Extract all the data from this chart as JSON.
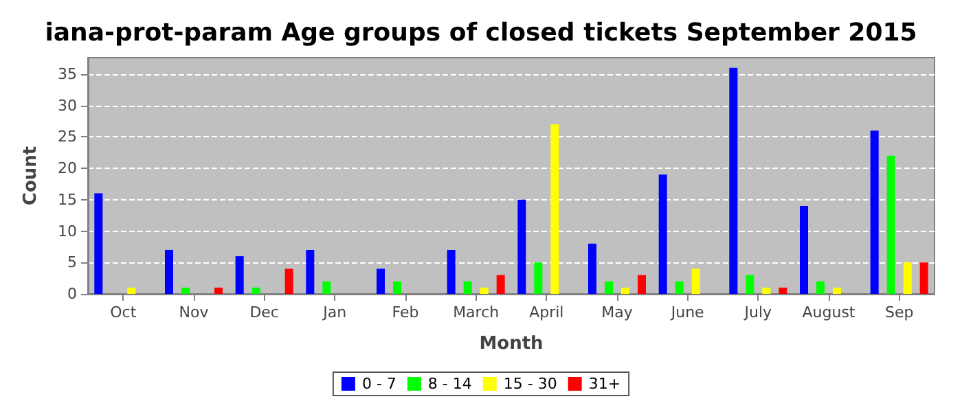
{
  "chart_data": {
    "type": "bar",
    "title": "iana-prot-param Age groups of closed tickets September 2015",
    "xlabel": "Month",
    "ylabel": "Count",
    "categories": [
      "Oct",
      "Nov",
      "Dec",
      "Jan",
      "Feb",
      "March",
      "April",
      "May",
      "June",
      "July",
      "August",
      "Sep"
    ],
    "series": [
      {
        "name": "0 - 7",
        "color": "#0000ff",
        "values": [
          16,
          7,
          6,
          7,
          4,
          7,
          15,
          8,
          19,
          36,
          14,
          26
        ]
      },
      {
        "name": "8 - 14",
        "color": "#00ff00",
        "values": [
          0,
          1,
          1,
          2,
          2,
          2,
          5,
          2,
          2,
          3,
          2,
          22
        ]
      },
      {
        "name": "15 - 30",
        "color": "#ffff00",
        "values": [
          1,
          0,
          0,
          0,
          0,
          1,
          27,
          1,
          4,
          1,
          1,
          5
        ]
      },
      {
        "name": "31+",
        "color": "#ff0000",
        "values": [
          0,
          1,
          4,
          0,
          0,
          3,
          0,
          3,
          0,
          1,
          0,
          5
        ]
      }
    ],
    "ylim": [
      0,
      37.6
    ],
    "yticks": [
      0,
      5,
      10,
      15,
      20,
      25,
      30,
      35
    ],
    "grid": "y",
    "legend": "bottom"
  }
}
